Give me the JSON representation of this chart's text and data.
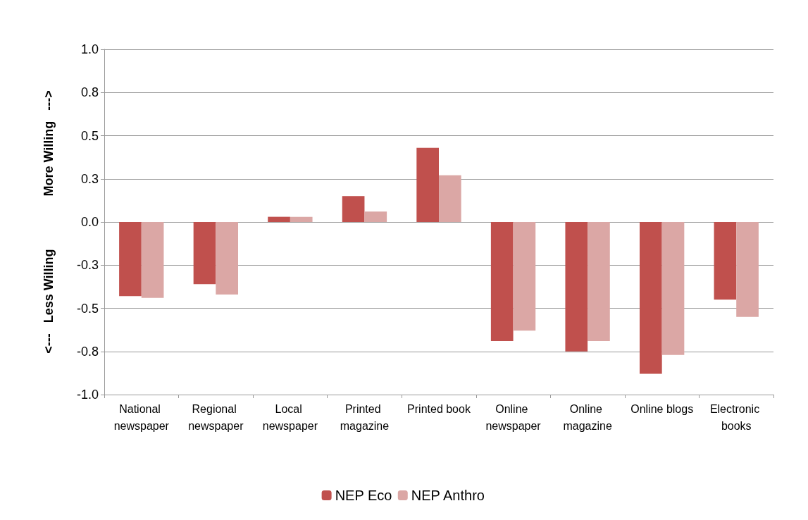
{
  "chart_data": {
    "type": "bar",
    "ylabel": "<---   Less Willing               More Willing   --->",
    "categories": [
      "National newspaper",
      "Regional newspaper",
      "Local newspaper",
      "Printed magazine",
      "Printed book",
      "Online newspaper",
      "Online magazine",
      "Online blogs",
      "Electronic books"
    ],
    "series": [
      {
        "name": "NEP Eco",
        "color": "#c0504d",
        "values": [
          -0.43,
          -0.36,
          0.03,
          0.15,
          0.43,
          -0.69,
          -0.75,
          -0.88,
          -0.45
        ]
      },
      {
        "name": "NEP Anthro",
        "color": "#dba7a5",
        "values": [
          -0.44,
          -0.42,
          0.03,
          0.06,
          0.27,
          -0.63,
          -0.69,
          -0.77,
          -0.55
        ]
      }
    ],
    "ylim": [
      -1,
      1
    ],
    "yticks": [
      {
        "value": -1,
        "label": "-1.0"
      },
      {
        "value": -0.75,
        "label": "-0.8"
      },
      {
        "value": -0.5,
        "label": "-0.5"
      },
      {
        "value": -0.25,
        "label": "-0.3"
      },
      {
        "value": 0,
        "label": "0.0"
      },
      {
        "value": 0.25,
        "label": "0.3"
      },
      {
        "value": 0.5,
        "label": "0.5"
      },
      {
        "value": 0.75,
        "label": "0.8"
      },
      {
        "value": 1,
        "label": "1.0"
      }
    ],
    "grid": "y",
    "legend": "bottom"
  }
}
